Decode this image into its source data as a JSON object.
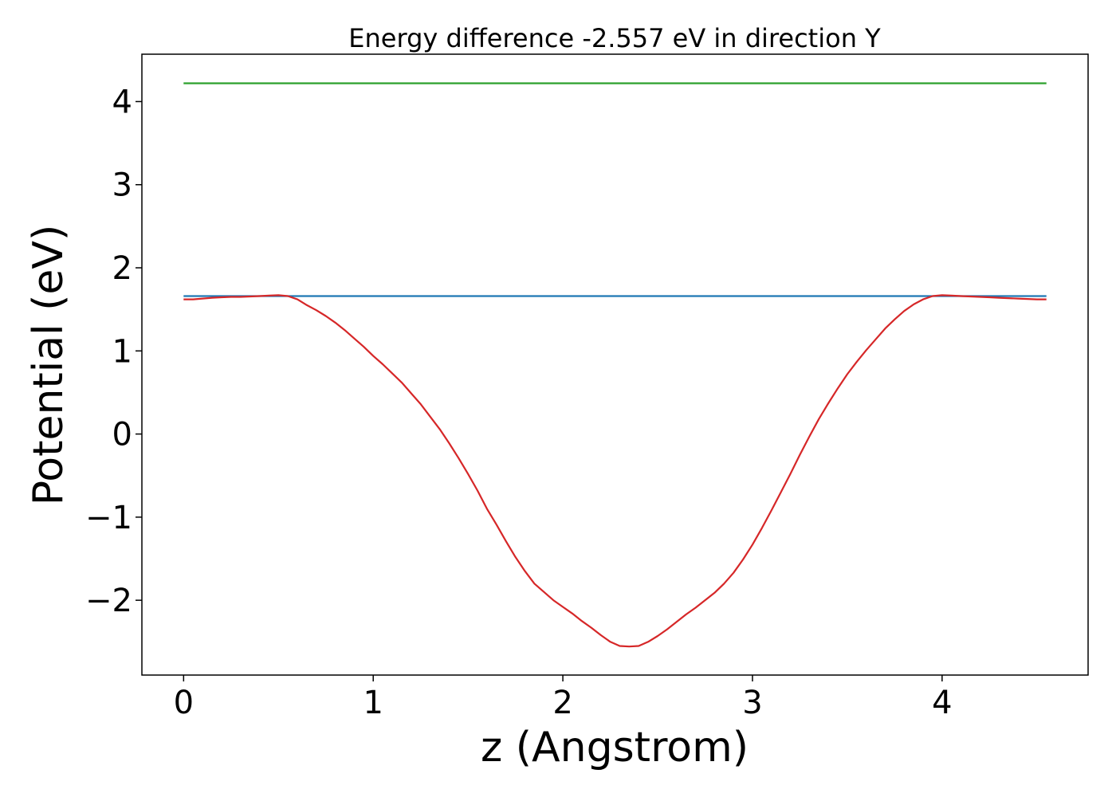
{
  "chart_data": {
    "type": "line",
    "title": "Energy difference -2.557 eV in direction Y",
    "xlabel": "z (Angstrom)",
    "ylabel": "Potential (eV)",
    "xlim": [
      -0.22,
      4.77
    ],
    "ylim": [
      -2.9,
      4.57
    ],
    "xticks": [
      0,
      1,
      2,
      3,
      4
    ],
    "xtick_labels": [
      "0",
      "1",
      "2",
      "3",
      "4"
    ],
    "yticks": [
      -2,
      -1,
      0,
      1,
      2,
      3,
      4
    ],
    "ytick_labels": [
      "−2",
      "−1",
      "0",
      "1",
      "2",
      "3",
      "4"
    ],
    "grid": false,
    "series": [
      {
        "color": "#2ca02c",
        "x": [
          0,
          4.55
        ],
        "y": [
          4.22,
          4.22
        ]
      },
      {
        "color": "#1f77b4",
        "x": [
          0,
          4.55
        ],
        "y": [
          1.66,
          1.66
        ]
      },
      {
        "color": "#d62728",
        "x": [
          0,
          0.05,
          0.1,
          0.15,
          0.2,
          0.25,
          0.3,
          0.35,
          0.4,
          0.45,
          0.5,
          0.55,
          0.6,
          0.65,
          0.7,
          0.75,
          0.8,
          0.85,
          0.9,
          0.95,
          1.0,
          1.05,
          1.1,
          1.15,
          1.2,
          1.25,
          1.3,
          1.35,
          1.4,
          1.45,
          1.5,
          1.55,
          1.6,
          1.65,
          1.7,
          1.75,
          1.8,
          1.85,
          1.9,
          1.95,
          2.0,
          2.05,
          2.1,
          2.15,
          2.2,
          2.25,
          2.3,
          2.35,
          2.4,
          2.45,
          2.5,
          2.55,
          2.6,
          2.65,
          2.7,
          2.75,
          2.8,
          2.85,
          2.9,
          2.95,
          3.0,
          3.05,
          3.1,
          3.15,
          3.2,
          3.25,
          3.3,
          3.35,
          3.4,
          3.45,
          3.5,
          3.55,
          3.6,
          3.65,
          3.7,
          3.75,
          3.8,
          3.85,
          3.9,
          3.95,
          4.0,
          4.05,
          4.1,
          4.15,
          4.2,
          4.25,
          4.3,
          4.35,
          4.4,
          4.45,
          4.5,
          4.55
        ],
        "y": [
          1.62,
          1.62,
          1.63,
          1.64,
          1.645,
          1.65,
          1.65,
          1.655,
          1.66,
          1.665,
          1.67,
          1.66,
          1.62,
          1.55,
          1.49,
          1.42,
          1.34,
          1.25,
          1.15,
          1.05,
          0.94,
          0.84,
          0.73,
          0.62,
          0.49,
          0.36,
          0.21,
          0.06,
          -0.11,
          -0.29,
          -0.48,
          -0.68,
          -0.9,
          -1.09,
          -1.29,
          -1.48,
          -1.65,
          -1.8,
          -1.9,
          -2.0,
          -2.08,
          -2.16,
          -2.25,
          -2.33,
          -2.42,
          -2.5,
          -2.55,
          -2.557,
          -2.55,
          -2.5,
          -2.43,
          -2.35,
          -2.26,
          -2.17,
          -2.09,
          -2.0,
          -1.91,
          -1.8,
          -1.67,
          -1.51,
          -1.33,
          -1.13,
          -0.92,
          -0.7,
          -0.48,
          -0.25,
          -0.03,
          0.18,
          0.37,
          0.55,
          0.72,
          0.87,
          1.01,
          1.14,
          1.27,
          1.38,
          1.48,
          1.56,
          1.62,
          1.66,
          1.67,
          1.665,
          1.66,
          1.655,
          1.65,
          1.645,
          1.64,
          1.635,
          1.63,
          1.625,
          1.62,
          1.62
        ]
      }
    ]
  }
}
